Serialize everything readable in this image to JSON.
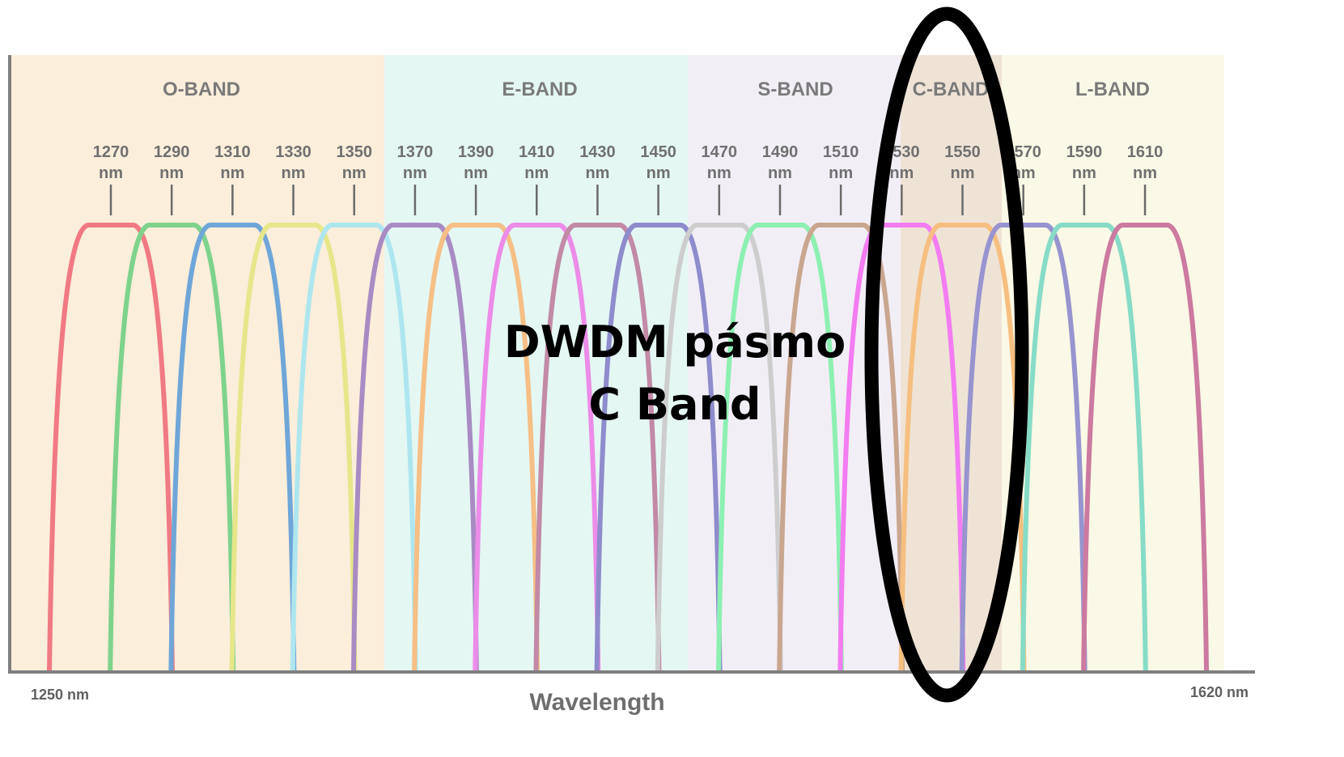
{
  "chart_data": {
    "type": "line",
    "bands": [
      {
        "label": "O-BAND",
        "from": 1250,
        "to": 1375,
        "color": "#fbeedb"
      },
      {
        "label": "E-BAND",
        "from": 1375,
        "to": 1475,
        "color": "#e4f7f3"
      },
      {
        "label": "S-BAND",
        "from": 1475,
        "to": 1525,
        "color": "#f2eef6"
      },
      {
        "label": "C-BAND",
        "from": 1525,
        "to": 1560,
        "color": "#efe3d6"
      },
      {
        "label": "L-BAND",
        "from": 1560,
        "to": 1620,
        "color": "#faf8e6"
      }
    ],
    "channels": [
      {
        "wavelength": 1270,
        "label": "1270",
        "unit": "nm",
        "color": "#f07a84"
      },
      {
        "wavelength": 1290,
        "label": "1290",
        "unit": "nm",
        "color": "#7ed38c"
      },
      {
        "wavelength": 1310,
        "label": "1310",
        "unit": "nm",
        "color": "#6fa6d8"
      },
      {
        "wavelength": 1330,
        "label": "1330",
        "unit": "nm",
        "color": "#e6e68a"
      },
      {
        "wavelength": 1350,
        "label": "1350",
        "unit": "nm",
        "color": "#aee6ef"
      },
      {
        "wavelength": 1370,
        "label": "1370",
        "unit": "nm",
        "color": "#a98bc4"
      },
      {
        "wavelength": 1390,
        "label": "1390",
        "unit": "nm",
        "color": "#f5bf86"
      },
      {
        "wavelength": 1410,
        "label": "1410",
        "unit": "nm",
        "color": "#ec8ce8"
      },
      {
        "wavelength": 1430,
        "label": "1430",
        "unit": "nm",
        "color": "#c28aa6"
      },
      {
        "wavelength": 1450,
        "label": "1450",
        "unit": "nm",
        "color": "#8e8ccc"
      },
      {
        "wavelength": 1470,
        "label": "1470",
        "unit": "nm",
        "color": "#cdcdcd"
      },
      {
        "wavelength": 1490,
        "label": "1490",
        "unit": "nm",
        "color": "#8df0b2"
      },
      {
        "wavelength": 1510,
        "label": "1510",
        "unit": "nm",
        "color": "#c9a68f"
      },
      {
        "wavelength": 1530,
        "label": "1530",
        "unit": "nm",
        "color": "#f27cf0"
      },
      {
        "wavelength": 1550,
        "label": "1550",
        "unit": "nm",
        "color": "#f6bf80"
      },
      {
        "wavelength": 1570,
        "label": "1570",
        "unit": "nm",
        "color": "#9794cf"
      },
      {
        "wavelength": 1590,
        "label": "1590",
        "unit": "nm",
        "color": "#86dcc6"
      },
      {
        "wavelength": 1610,
        "label": "1610",
        "unit": "nm",
        "color": "#cc7aa0"
      }
    ],
    "xlabel": "Wavelength",
    "ylabel": "",
    "xlim": [
      1250,
      1620
    ],
    "x_start_label": "1250 nm",
    "x_end_label": "1620 nm",
    "grid": false,
    "annotation": {
      "lines": [
        "DWDM pásmo",
        "C Band"
      ],
      "highlight": "C-BAND",
      "highlight_shape": "ellipse",
      "highlight_color": "#000000"
    },
    "axis_color": "#7f7f7f",
    "band_label_color": "#7a7a7a"
  }
}
